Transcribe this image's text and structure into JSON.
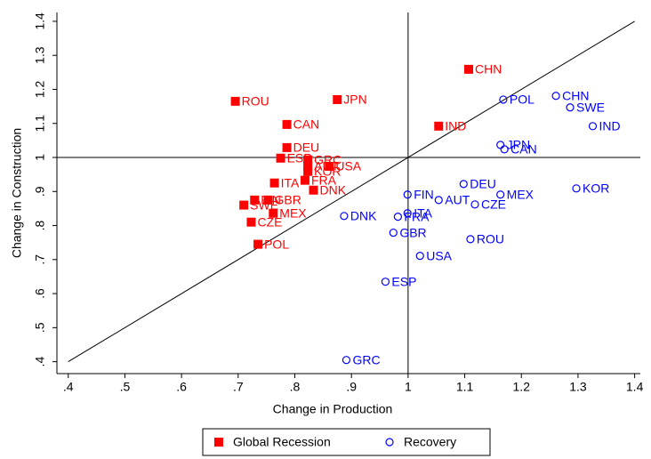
{
  "chart_data": {
    "type": "scatter",
    "x_label": "Change in Production",
    "y_label": "Change in Construction",
    "xlim": [
      0.38,
      1.41
    ],
    "ylim": [
      0.365,
      1.426
    ],
    "xticks": [
      {
        "value": 0.4,
        "label": ".4"
      },
      {
        "value": 0.5,
        "label": ".5"
      },
      {
        "value": 0.6,
        "label": ".6"
      },
      {
        "value": 0.7,
        "label": ".7"
      },
      {
        "value": 0.8,
        "label": ".8"
      },
      {
        "value": 0.9,
        "label": ".9"
      },
      1,
      1.1,
      1.2,
      1.3,
      1.4
    ],
    "yticks": [
      {
        "value": 0.4,
        "label": ".4"
      },
      {
        "value": 0.5,
        "label": ".5"
      },
      {
        "value": 0.6,
        "label": ".6"
      },
      {
        "value": 0.7,
        "label": ".7"
      },
      {
        "value": 0.8,
        "label": ".8"
      },
      {
        "value": 0.9,
        "label": ".9"
      },
      1,
      1.1,
      1.2,
      1.3,
      1.4
    ],
    "vline": 1,
    "hline": 1,
    "diagonal": [
      0.4,
      1.4
    ],
    "series": [
      {
        "name": "Global Recession",
        "color": "#ff0000",
        "marker": "square",
        "labels": [
          "ROU",
          "JPN",
          "CHN",
          "CAN",
          "IND",
          "DEU",
          "ESP",
          "GRC",
          "AUT",
          "USA",
          "KOR",
          "FRA",
          "ITA",
          "DNK",
          "FIN",
          "GBR",
          "SWE",
          "MEX",
          "CZE",
          "POL"
        ],
        "x": [
          0.695,
          0.875,
          1.107,
          0.786,
          1.054,
          0.786,
          0.775,
          0.823,
          0.823,
          0.861,
          0.823,
          0.818,
          0.764,
          0.833,
          0.729,
          0.753,
          0.71,
          0.762,
          0.723,
          0.735
        ],
        "values": [
          1.165,
          1.17,
          1.259,
          1.097,
          1.092,
          1.029,
          0.998,
          0.993,
          0.974,
          0.974,
          0.959,
          0.933,
          0.925,
          0.904,
          0.875,
          0.875,
          0.86,
          0.836,
          0.81,
          0.745
        ]
      },
      {
        "name": "Recovery",
        "color": "#0000ff",
        "marker": "circle",
        "labels": [
          "CHN",
          "POL",
          "SWE",
          "IND",
          "JPN",
          "CAN",
          "KOR",
          "DEU",
          "MEX",
          "AUT",
          "CZE",
          "FIN",
          "ITA",
          "FRA",
          "DNK",
          "GBR",
          "ROU",
          "USA",
          "ESP",
          "GRC"
        ],
        "x": [
          1.261,
          1.168,
          1.286,
          1.326,
          1.163,
          1.17,
          1.297,
          1.098,
          1.163,
          1.054,
          1.118,
          0.999,
          0.999,
          0.982,
          0.887,
          0.974,
          1.11,
          1.021,
          0.96,
          0.891
        ],
        "values": [
          1.181,
          1.17,
          1.147,
          1.092,
          1.037,
          1.024,
          0.909,
          0.922,
          0.891,
          0.875,
          0.862,
          0.891,
          0.836,
          0.826,
          0.828,
          0.779,
          0.76,
          0.711,
          0.635,
          0.405
        ]
      }
    ]
  }
}
